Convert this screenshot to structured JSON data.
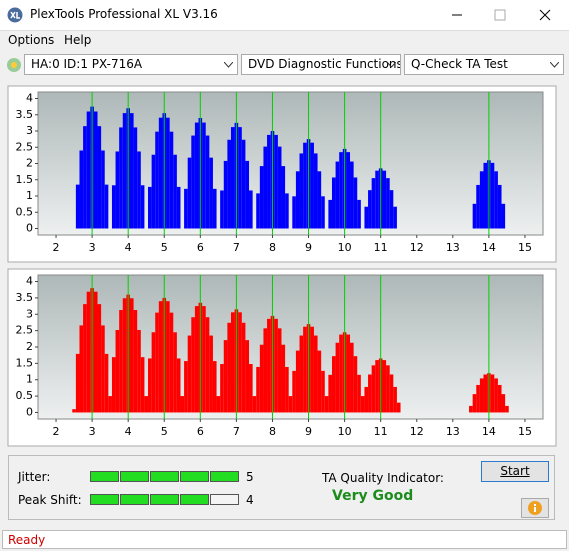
{
  "window": {
    "title": "PlexTools Professional XL V3.16"
  },
  "menu": [
    "Options",
    "Help"
  ],
  "toolbar": {
    "drive": "HA:0 ID:1  PX-716A",
    "function": "DVD Diagnostic Functions",
    "test": "Q-Check TA Test"
  },
  "chart_data": [
    {
      "type": "bar",
      "color": "#0000ff",
      "marker_color": "#00d000",
      "x": [
        2.5,
        2.6,
        2.7,
        2.8,
        2.9,
        3,
        3.1,
        3.2,
        3.3,
        3.4,
        3.5,
        3.6,
        3.7,
        3.8,
        3.9,
        4,
        4.1,
        4.2,
        4.3,
        4.4,
        4.5,
        4.6,
        4.7,
        4.8,
        4.9,
        5,
        5.1,
        5.2,
        5.3,
        5.4,
        5.5,
        5.6,
        5.7,
        5.8,
        5.9,
        6,
        6.1,
        6.2,
        6.3,
        6.4,
        6.5,
        6.6,
        6.7,
        6.8,
        6.9,
        7,
        7.1,
        7.2,
        7.3,
        7.4,
        7.5,
        7.6,
        7.7,
        7.8,
        7.9,
        8,
        8.1,
        8.2,
        8.3,
        8.4,
        8.5,
        8.6,
        8.7,
        8.8,
        8.9,
        9,
        9.1,
        9.2,
        9.3,
        9.4,
        9.5,
        9.6,
        9.7,
        9.8,
        9.9,
        10,
        10.1,
        10.2,
        10.3,
        10.4,
        10.5,
        10.6,
        10.7,
        10.8,
        10.9,
        11,
        11.1,
        11.2,
        11.3,
        11.4,
        11.5,
        11.6,
        11.7,
        11.8,
        11.9,
        12,
        12.1,
        12.2,
        12.3,
        12.4,
        12.5,
        12.6,
        12.7,
        12.8,
        12.9,
        13,
        13.1,
        13.2,
        13.3,
        13.4,
        13.5,
        13.6,
        13.7,
        13.8,
        13.9,
        14,
        14.1,
        14.2,
        14.3,
        14.4,
        14.5
      ],
      "values": [
        0,
        1.35,
        2.4,
        3.15,
        3.6,
        3.75,
        3.6,
        3.15,
        2.4,
        1.35,
        0,
        1.33,
        2.37,
        3.11,
        3.55,
        3.7,
        3.55,
        3.11,
        2.37,
        1.33,
        0,
        1.28,
        2.27,
        2.98,
        3.41,
        3.55,
        3.41,
        2.98,
        2.27,
        1.28,
        0,
        1.22,
        2.18,
        2.86,
        3.26,
        3.4,
        3.26,
        2.86,
        2.18,
        1.22,
        0,
        1.17,
        2.08,
        2.73,
        3.12,
        3.25,
        3.12,
        2.73,
        2.08,
        1.17,
        0,
        1.08,
        1.92,
        2.52,
        2.88,
        3,
        2.88,
        2.52,
        1.92,
        1.08,
        0,
        0.99,
        1.76,
        2.31,
        2.64,
        2.75,
        2.64,
        2.31,
        1.76,
        0.99,
        0,
        0.88,
        1.57,
        2.06,
        2.35,
        2.45,
        2.35,
        2.06,
        1.57,
        0.88,
        0,
        0.67,
        1.18,
        1.55,
        1.78,
        1.85,
        1.78,
        1.55,
        1.18,
        0.67,
        0,
        0,
        0,
        0,
        0,
        0,
        0,
        0,
        0,
        0,
        0,
        0,
        0,
        0,
        0,
        0,
        0,
        0,
        0,
        0,
        0,
        0.76,
        1.34,
        1.76,
        2.02,
        2.1,
        2.02,
        1.76,
        1.34,
        0.76,
        0
      ],
      "xlim": [
        1.5,
        15.5
      ],
      "ylim": [
        -0.2,
        4.2
      ],
      "xticks": [
        2,
        3,
        4,
        5,
        6,
        7,
        8,
        9,
        10,
        11,
        12,
        13,
        14,
        15
      ],
      "yticks": [
        0,
        0.5,
        1,
        1.5,
        2,
        2.5,
        3,
        3.5,
        4
      ],
      "markers": [
        3,
        4,
        5,
        6,
        7,
        8,
        9,
        10,
        11,
        14
      ]
    },
    {
      "type": "bar",
      "color": "#ff0000",
      "marker_color": "#00d000",
      "x": [
        2.5,
        2.6,
        2.7,
        2.8,
        2.9,
        3,
        3.1,
        3.2,
        3.3,
        3.4,
        3.5,
        3.6,
        3.7,
        3.8,
        3.9,
        4,
        4.1,
        4.2,
        4.3,
        4.4,
        4.5,
        4.6,
        4.7,
        4.8,
        4.9,
        5,
        5.1,
        5.2,
        5.3,
        5.4,
        5.5,
        5.6,
        5.7,
        5.8,
        5.9,
        6,
        6.1,
        6.2,
        6.3,
        6.4,
        6.5,
        6.6,
        6.7,
        6.8,
        6.9,
        7,
        7.1,
        7.2,
        7.3,
        7.4,
        7.5,
        7.6,
        7.7,
        7.8,
        7.9,
        8,
        8.1,
        8.2,
        8.3,
        8.4,
        8.5,
        8.6,
        8.7,
        8.8,
        8.9,
        9,
        9.1,
        9.2,
        9.3,
        9.4,
        9.5,
        9.6,
        9.7,
        9.8,
        9.9,
        10,
        10.1,
        10.2,
        10.3,
        10.4,
        10.5,
        10.6,
        10.7,
        10.8,
        10.9,
        11,
        11.1,
        11.2,
        11.3,
        11.4,
        11.5,
        11.6,
        11.7,
        11.8,
        11.9,
        12,
        12.1,
        12.2,
        12.3,
        12.4,
        12.5,
        12.6,
        12.7,
        12.8,
        12.9,
        13,
        13.1,
        13.2,
        13.3,
        13.4,
        13.5,
        13.6,
        13.7,
        13.8,
        13.9,
        14,
        14.1,
        14.2,
        14.3,
        14.4,
        14.5
      ],
      "values": [
        0.1,
        1.79,
        2.66,
        3.31,
        3.69,
        3.8,
        3.69,
        3.31,
        2.66,
        1.79,
        0.5,
        1.69,
        2.52,
        3.13,
        3.49,
        3.6,
        3.49,
        3.13,
        2.52,
        1.69,
        0.5,
        1.65,
        2.45,
        3.05,
        3.4,
        3.5,
        3.4,
        3.05,
        2.45,
        1.65,
        0.5,
        1.57,
        2.35,
        2.91,
        3.25,
        3.35,
        3.25,
        2.91,
        2.35,
        1.57,
        0.5,
        1.48,
        2.21,
        2.74,
        3.06,
        3.15,
        3.06,
        2.74,
        2.21,
        1.48,
        0.5,
        1.39,
        2.07,
        2.57,
        2.86,
        2.95,
        2.86,
        2.57,
        2.07,
        1.39,
        0.5,
        1.27,
        1.89,
        2.35,
        2.62,
        2.7,
        2.62,
        2.35,
        1.89,
        1.27,
        0.5,
        1.15,
        1.72,
        2.13,
        2.38,
        2.45,
        2.38,
        2.13,
        1.72,
        1.15,
        0.5,
        0.78,
        1.16,
        1.44,
        1.6,
        1.65,
        1.6,
        1.44,
        1.16,
        0.78,
        0.3,
        0,
        0,
        0,
        0,
        0,
        0,
        0,
        0,
        0,
        0,
        0,
        0,
        0,
        0,
        0,
        0,
        0,
        0,
        0,
        0.2,
        0.56,
        0.84,
        1.04,
        1.16,
        1.2,
        1.16,
        1.04,
        0.84,
        0.56,
        0.2
      ],
      "xlim": [
        1.5,
        15.5
      ],
      "ylim": [
        -0.2,
        4.2
      ],
      "xticks": [
        2,
        3,
        4,
        5,
        6,
        7,
        8,
        9,
        10,
        11,
        12,
        13,
        14,
        15
      ],
      "yticks": [
        0,
        0.5,
        1,
        1.5,
        2,
        2.5,
        3,
        3.5,
        4
      ],
      "markers": [
        3,
        4,
        5,
        6,
        7,
        8,
        9,
        10,
        11,
        14
      ]
    }
  ],
  "results": {
    "jitter": {
      "label": "Jitter:",
      "value": 5
    },
    "peak_shift": {
      "label": "Peak Shift:",
      "value": 4
    },
    "scale_max": 5,
    "ta_label": "TA Quality Indicator:",
    "ta_value": "Very Good"
  },
  "buttons": {
    "start": "Start"
  },
  "status": "Ready"
}
